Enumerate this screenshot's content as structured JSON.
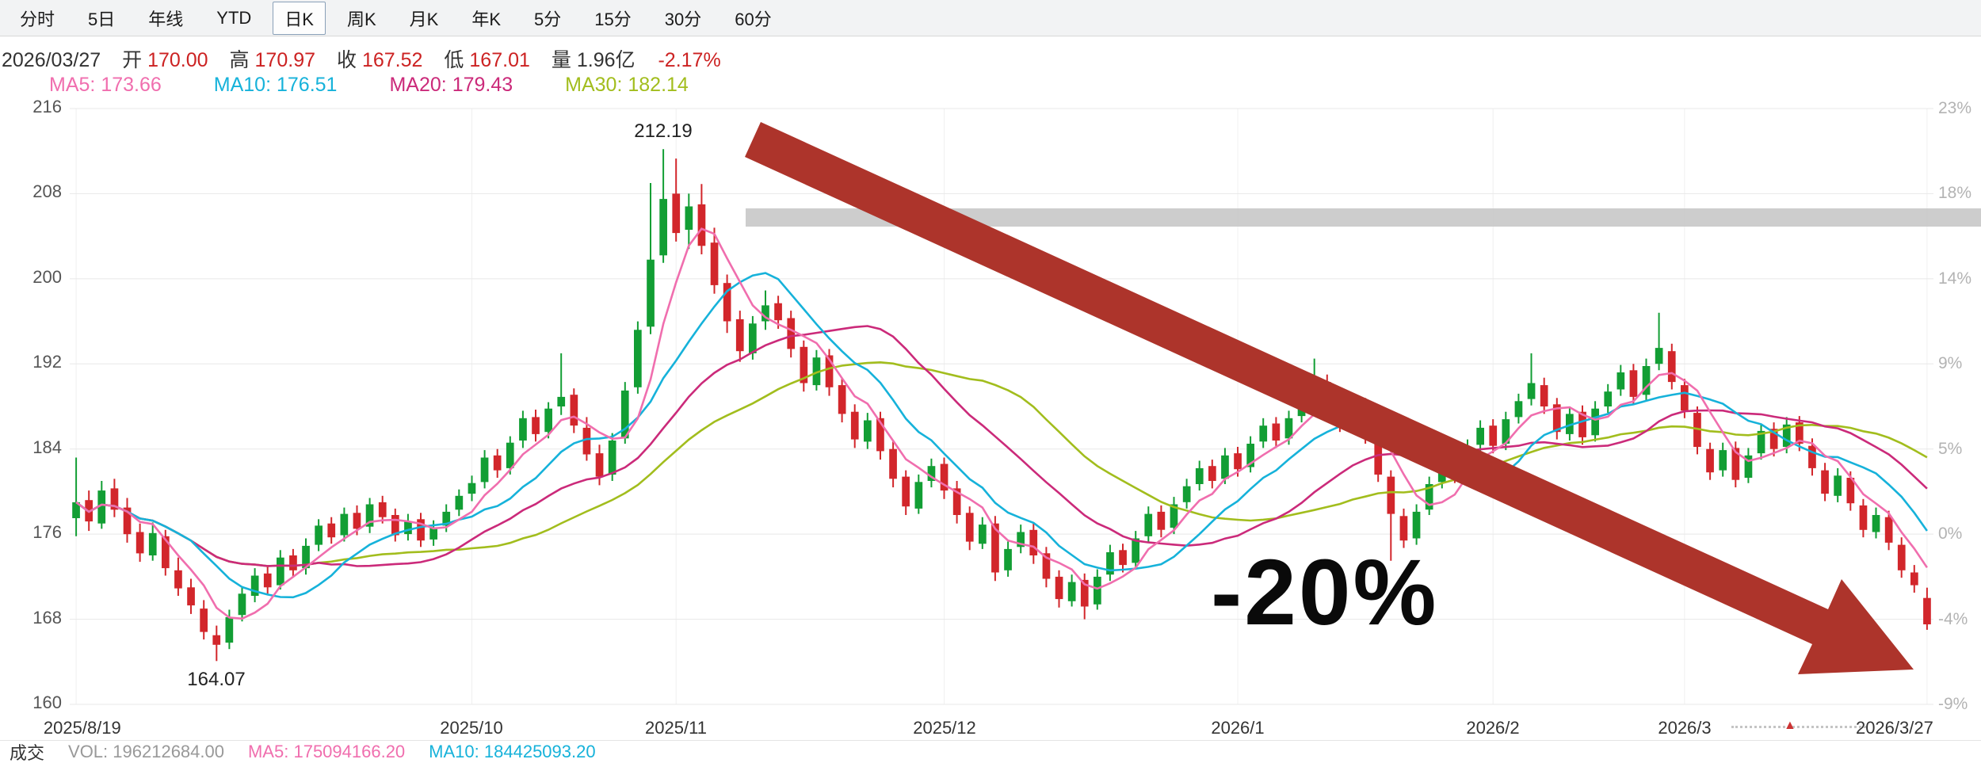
{
  "toolbar": {
    "tabs": [
      {
        "label": "分时",
        "active": false
      },
      {
        "label": "5日",
        "active": false
      },
      {
        "label": "年线",
        "active": false
      },
      {
        "label": "YTD",
        "active": false
      },
      {
        "label": "日K",
        "active": true
      },
      {
        "label": "周K",
        "active": false
      },
      {
        "label": "月K",
        "active": false
      },
      {
        "label": "年K",
        "active": false
      },
      {
        "label": "5分",
        "active": false
      },
      {
        "label": "15分",
        "active": false
      },
      {
        "label": "30分",
        "active": false
      },
      {
        "label": "60分",
        "active": false
      }
    ]
  },
  "info_bar": {
    "date": "2026/03/27",
    "open_label": "开",
    "open_value": "170.00",
    "high_label": "高",
    "high_value": "170.97",
    "close_label": "收",
    "close_value": "167.52",
    "low_label": "低",
    "low_value": "167.01",
    "volume_label": "量",
    "volume_value": "1.96亿",
    "change_percent": "-2.17%"
  },
  "ma_legend": [
    {
      "label": "MA5:",
      "value": "173.66",
      "color": "#f06eae"
    },
    {
      "label": "MA10:",
      "value": "176.51",
      "color": "#16b2da"
    },
    {
      "label": "MA20:",
      "value": "179.43",
      "color": "#cb2a7a"
    },
    {
      "label": "MA30:",
      "value": "182.14",
      "color": "#a2bd1d"
    }
  ],
  "bottom_bar": {
    "turnover_label": "成交",
    "vol_label": "VOL:",
    "vol_value": "196212684.00",
    "ma5_label": "MA5:",
    "ma5_value": "175094166.20",
    "ma10_label": "MA10:",
    "ma10_value": "184425093.20"
  },
  "icons": {
    "marker_triangle": "▲"
  },
  "chart_data": {
    "type": "candlestick",
    "title": "",
    "ylim": [
      160,
      216
    ],
    "y_ticks": [
      216,
      208,
      200,
      192,
      184,
      176,
      168,
      160
    ],
    "right_axis_ticks": [
      "23%",
      "18%",
      "14%",
      "9%",
      "5%",
      "0%",
      "-4%",
      "-9%"
    ],
    "x_labels": [
      {
        "index": 0,
        "label": "2025/8/19"
      },
      {
        "index": 31,
        "label": "2025/10"
      },
      {
        "index": 47,
        "label": "2025/11"
      },
      {
        "index": 68,
        "label": "2025/12"
      },
      {
        "index": 91,
        "label": "2026/1"
      },
      {
        "index": 111,
        "label": "2026/2"
      },
      {
        "index": 126,
        "label": "2026/3"
      },
      {
        "index": 145,
        "label": "2026/3/27"
      }
    ],
    "up_color": "#129e34",
    "down_color": "#d2262b",
    "grid": true,
    "legend_position": "top-left",
    "ma_lines": [
      {
        "window": 5,
        "color": "#f06eae"
      },
      {
        "window": 10,
        "color": "#16b2da"
      },
      {
        "window": 20,
        "color": "#cb2a7a"
      },
      {
        "window": 30,
        "color": "#a2bd1d"
      }
    ],
    "annotations": {
      "peak_price_label": "212.19",
      "low_price_label": "164.07",
      "drop_callout": "-20%",
      "arrow_color": "#ad342b",
      "highlight_bar_color": "#c9c9c9"
    },
    "candles_format": [
      "open",
      "high",
      "low",
      "close"
    ],
    "candles": [
      [
        177.5,
        183.2,
        175.8,
        179.0
      ],
      [
        179.2,
        180.1,
        176.3,
        177.2
      ],
      [
        177.0,
        181.0,
        176.5,
        180.1
      ],
      [
        180.3,
        181.2,
        177.6,
        178.3
      ],
      [
        178.5,
        179.4,
        175.2,
        176.0
      ],
      [
        176.2,
        177.0,
        173.4,
        174.2
      ],
      [
        174.0,
        177.1,
        173.5,
        176.1
      ],
      [
        175.8,
        176.4,
        172.1,
        172.8
      ],
      [
        172.6,
        173.8,
        170.2,
        170.9
      ],
      [
        171.0,
        171.8,
        168.5,
        169.3
      ],
      [
        169.0,
        169.8,
        166.1,
        166.8
      ],
      [
        166.5,
        167.4,
        164.07,
        165.6
      ],
      [
        165.8,
        168.9,
        165.2,
        168.2
      ],
      [
        168.4,
        171.1,
        167.8,
        170.4
      ],
      [
        170.2,
        172.8,
        169.6,
        172.1
      ],
      [
        172.3,
        173.0,
        170.4,
        171.0
      ],
      [
        171.2,
        174.5,
        170.8,
        173.8
      ],
      [
        174.0,
        174.6,
        172.0,
        172.6
      ],
      [
        172.8,
        175.6,
        172.2,
        174.9
      ],
      [
        175.0,
        177.4,
        174.4,
        176.8
      ],
      [
        177.0,
        177.6,
        175.1,
        175.7
      ],
      [
        175.9,
        178.5,
        175.3,
        177.9
      ],
      [
        178.0,
        178.7,
        175.9,
        176.5
      ],
      [
        176.7,
        179.4,
        176.1,
        178.8
      ],
      [
        179.0,
        179.6,
        177.0,
        177.6
      ],
      [
        177.8,
        178.4,
        175.3,
        175.9
      ],
      [
        176.0,
        177.9,
        175.4,
        177.2
      ],
      [
        177.4,
        178.0,
        174.8,
        175.4
      ],
      [
        175.5,
        177.3,
        174.9,
        176.6
      ],
      [
        176.8,
        178.8,
        176.2,
        178.1
      ],
      [
        178.3,
        180.2,
        177.7,
        179.6
      ],
      [
        179.8,
        181.5,
        179.1,
        180.8
      ],
      [
        180.9,
        183.9,
        180.3,
        183.2
      ],
      [
        183.4,
        184.0,
        181.3,
        182.0
      ],
      [
        182.2,
        185.2,
        181.6,
        184.6
      ],
      [
        184.8,
        187.6,
        184.1,
        186.9
      ],
      [
        187.0,
        187.7,
        184.7,
        185.4
      ],
      [
        185.6,
        188.4,
        185.0,
        187.8
      ],
      [
        188.0,
        193.0,
        187.2,
        188.9
      ],
      [
        189.1,
        189.7,
        185.5,
        186.2
      ],
      [
        186.0,
        187.0,
        182.9,
        183.5
      ],
      [
        183.6,
        184.4,
        180.6,
        181.4
      ],
      [
        181.6,
        185.5,
        181.0,
        184.8
      ],
      [
        185.0,
        190.3,
        184.5,
        189.5
      ],
      [
        189.8,
        196.0,
        189.2,
        195.2
      ],
      [
        195.5,
        209.0,
        194.8,
        201.8
      ],
      [
        202.2,
        212.19,
        201.5,
        207.5
      ],
      [
        208.0,
        211.3,
        203.5,
        204.3
      ],
      [
        204.6,
        208.0,
        202.8,
        206.8
      ],
      [
        207.0,
        208.9,
        202.3,
        203.1
      ],
      [
        203.4,
        204.8,
        198.6,
        199.4
      ],
      [
        199.6,
        200.4,
        194.9,
        196.0
      ],
      [
        196.2,
        197.0,
        192.2,
        193.2
      ],
      [
        193.0,
        196.5,
        192.4,
        195.8
      ],
      [
        196.0,
        198.9,
        195.2,
        197.5
      ],
      [
        197.7,
        198.4,
        195.3,
        196.1
      ],
      [
        196.3,
        197.0,
        192.6,
        193.4
      ],
      [
        193.6,
        194.2,
        189.4,
        190.2
      ],
      [
        190.0,
        193.3,
        189.5,
        192.6
      ],
      [
        192.8,
        193.4,
        189.0,
        189.8
      ],
      [
        190.0,
        190.7,
        186.5,
        187.3
      ],
      [
        187.5,
        188.2,
        184.1,
        184.9
      ],
      [
        184.7,
        187.4,
        184.0,
        186.7
      ],
      [
        186.9,
        187.5,
        183.0,
        183.8
      ],
      [
        184.0,
        184.7,
        180.4,
        181.2
      ],
      [
        181.4,
        182.0,
        177.8,
        178.6
      ],
      [
        178.4,
        181.6,
        177.9,
        180.9
      ],
      [
        181.0,
        183.1,
        180.4,
        182.4
      ],
      [
        182.6,
        183.2,
        179.3,
        180.1
      ],
      [
        180.3,
        181.0,
        177.0,
        177.8
      ],
      [
        178.0,
        178.6,
        174.5,
        175.3
      ],
      [
        175.1,
        177.6,
        174.6,
        176.9
      ],
      [
        177.0,
        177.7,
        171.6,
        172.4
      ],
      [
        172.6,
        175.3,
        172.0,
        174.6
      ],
      [
        174.8,
        176.9,
        174.2,
        176.2
      ],
      [
        176.4,
        177.0,
        173.2,
        174.0
      ],
      [
        174.2,
        174.8,
        171.0,
        171.8
      ],
      [
        172.0,
        172.6,
        169.1,
        169.9
      ],
      [
        169.7,
        172.2,
        169.2,
        171.5
      ],
      [
        171.7,
        172.3,
        168.0,
        169.2
      ],
      [
        169.4,
        172.7,
        168.9,
        172.0
      ],
      [
        172.2,
        175.0,
        171.6,
        174.3
      ],
      [
        174.5,
        175.1,
        172.4,
        173.1
      ],
      [
        173.3,
        176.3,
        172.8,
        175.6
      ],
      [
        175.8,
        178.6,
        175.2,
        177.9
      ],
      [
        178.1,
        178.7,
        175.7,
        176.4
      ],
      [
        176.6,
        179.5,
        176.0,
        178.8
      ],
      [
        179.0,
        181.2,
        178.4,
        180.5
      ],
      [
        180.7,
        182.9,
        180.1,
        182.2
      ],
      [
        182.4,
        183.0,
        180.3,
        181.0
      ],
      [
        181.2,
        184.1,
        180.7,
        183.4
      ],
      [
        183.6,
        184.2,
        181.4,
        182.1
      ],
      [
        182.3,
        185.2,
        181.8,
        184.5
      ],
      [
        184.7,
        186.9,
        184.1,
        186.2
      ],
      [
        186.4,
        187.0,
        184.1,
        184.8
      ],
      [
        185.0,
        187.6,
        184.4,
        186.9
      ],
      [
        187.1,
        189.1,
        186.5,
        188.4
      ],
      [
        188.6,
        192.5,
        188.0,
        190.1
      ],
      [
        190.3,
        191.0,
        187.9,
        188.6
      ],
      [
        188.8,
        189.4,
        185.6,
        186.3
      ],
      [
        186.1,
        188.7,
        185.5,
        188.0
      ],
      [
        188.2,
        188.8,
        184.5,
        185.2
      ],
      [
        185.0,
        185.7,
        180.9,
        181.6
      ],
      [
        181.4,
        182.0,
        173.5,
        177.9
      ],
      [
        177.7,
        178.4,
        174.7,
        175.4
      ],
      [
        175.6,
        178.8,
        175.0,
        178.1
      ],
      [
        178.3,
        181.4,
        177.8,
        180.7
      ],
      [
        180.9,
        183.6,
        180.3,
        182.9
      ],
      [
        183.1,
        183.7,
        180.8,
        181.5
      ],
      [
        181.7,
        184.9,
        181.2,
        184.2
      ],
      [
        184.4,
        186.7,
        183.8,
        186.0
      ],
      [
        186.2,
        186.8,
        183.6,
        184.3
      ],
      [
        184.5,
        187.5,
        183.9,
        186.8
      ],
      [
        187.0,
        189.2,
        186.4,
        188.5
      ],
      [
        188.7,
        193.0,
        188.1,
        190.2
      ],
      [
        190.0,
        190.7,
        187.3,
        188.0
      ],
      [
        188.2,
        188.8,
        184.9,
        185.6
      ],
      [
        185.4,
        188.0,
        184.8,
        187.3
      ],
      [
        187.5,
        188.1,
        184.4,
        185.1
      ],
      [
        185.3,
        188.5,
        184.7,
        187.8
      ],
      [
        188.0,
        190.1,
        187.4,
        189.4
      ],
      [
        189.6,
        191.9,
        189.0,
        191.2
      ],
      [
        191.4,
        192.0,
        188.2,
        188.9
      ],
      [
        189.1,
        192.5,
        188.5,
        191.8
      ],
      [
        192.0,
        196.8,
        191.4,
        193.5
      ],
      [
        193.2,
        193.9,
        189.6,
        190.3
      ],
      [
        190.0,
        190.6,
        186.9,
        187.6
      ],
      [
        187.4,
        188.0,
        183.5,
        184.2
      ],
      [
        184.0,
        184.6,
        181.1,
        181.8
      ],
      [
        182.0,
        184.6,
        181.4,
        183.9
      ],
      [
        184.1,
        184.7,
        180.4,
        181.1
      ],
      [
        181.3,
        184.1,
        180.8,
        183.4
      ],
      [
        183.6,
        186.4,
        183.0,
        185.7
      ],
      [
        185.9,
        186.5,
        183.3,
        184.0
      ],
      [
        184.2,
        187.0,
        183.6,
        186.3
      ],
      [
        186.5,
        187.1,
        183.8,
        184.5
      ],
      [
        184.3,
        185.0,
        181.5,
        182.2
      ],
      [
        182.0,
        182.7,
        179.1,
        179.8
      ],
      [
        179.6,
        182.2,
        179.0,
        181.5
      ],
      [
        181.3,
        181.9,
        178.2,
        178.9
      ],
      [
        178.7,
        179.3,
        175.7,
        176.4
      ],
      [
        176.2,
        178.5,
        175.6,
        177.8
      ],
      [
        177.6,
        178.2,
        174.5,
        175.2
      ],
      [
        175.0,
        175.7,
        171.9,
        172.6
      ],
      [
        172.4,
        173.1,
        170.5,
        171.2
      ],
      [
        170.0,
        170.97,
        167.01,
        167.52
      ]
    ]
  }
}
